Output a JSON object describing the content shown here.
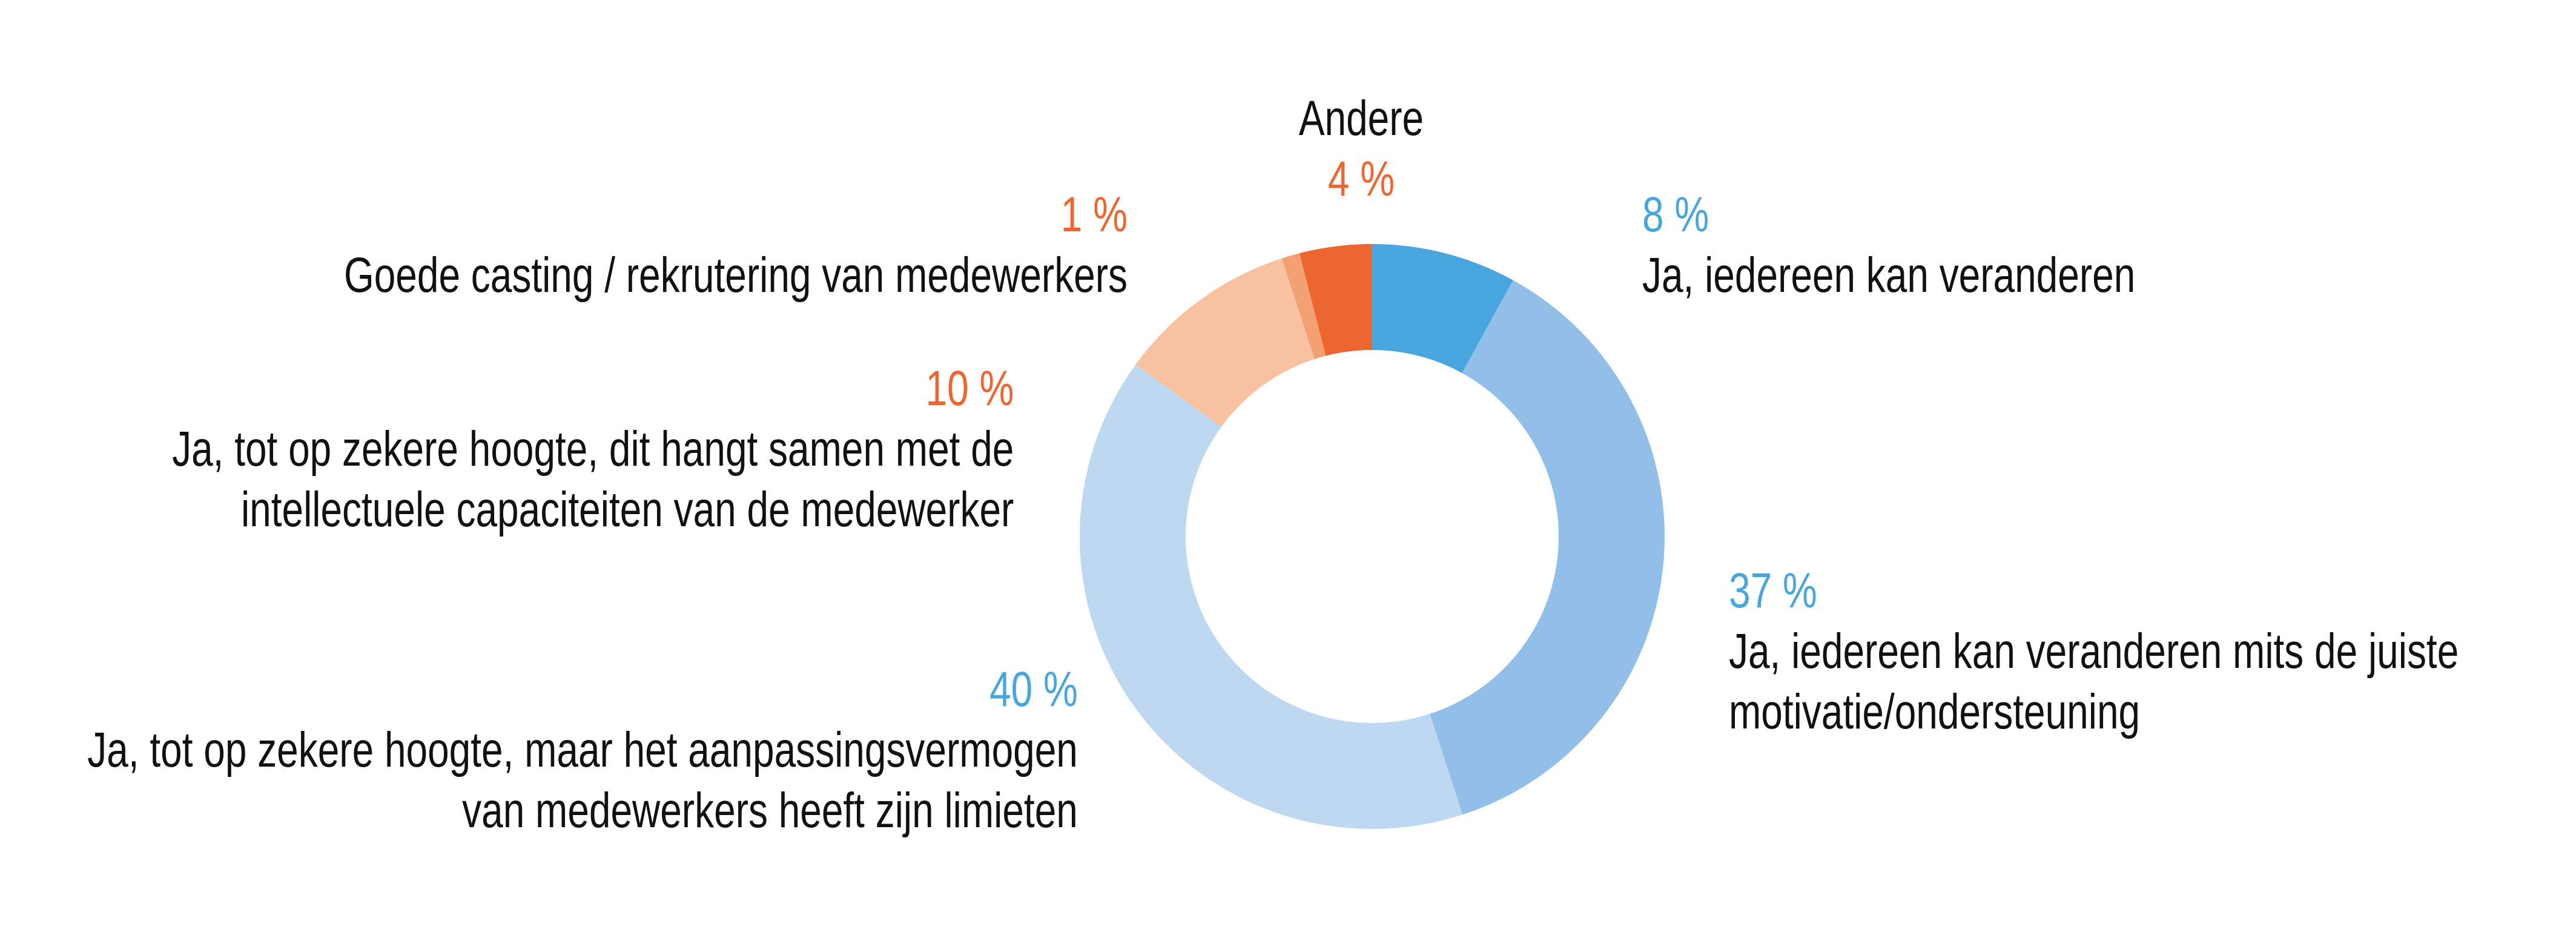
{
  "chart_data": {
    "type": "pie",
    "variant": "donut",
    "title": "",
    "start": "top",
    "direction": "clockwise",
    "slices": [
      {
        "label": "Ja, iedereen kan veranderen",
        "value": 8,
        "value_label": "8 %",
        "color": "#49A5DE",
        "label_color": "#49A5DE"
      },
      {
        "label": "Ja, iedereen kan veranderen mits de juiste motivatie/ondersteuning",
        "value": 37,
        "value_label": "37 %",
        "color": "#92BFE8",
        "label_color": "#49A5DE"
      },
      {
        "label": "Ja, tot op zekere hoogte, maar het aanpassingsvermogen van medewerkers heeft zijn limieten",
        "value": 40,
        "value_label": "40 %",
        "color": "#BFD8F1",
        "label_color": "#49A5DE"
      },
      {
        "label": "Ja, tot op zekere hoogte, dit hangt samen met de intellectuele capaciteiten van de medewerker",
        "value": 10,
        "value_label": "10 %",
        "color": "#F8C2A0",
        "label_color": "#EC6730"
      },
      {
        "label": "Goede casting / rekrutering van medewerkers",
        "value": 1,
        "value_label": "1 %",
        "color": "#F3A173",
        "label_color": "#EC6730"
      },
      {
        "label": "Andere",
        "value": 4,
        "value_label": "4 %",
        "color": "#EC6730",
        "label_color": "#EC6730"
      }
    ]
  },
  "labels": {
    "s0": {
      "pct": "8 %",
      "lines": [
        "Ja, iedereen kan veranderen"
      ]
    },
    "s1": {
      "pct": "37 %",
      "lines": [
        "Ja, iedereen kan veranderen mits de juiste",
        "motivatie/ondersteuning"
      ]
    },
    "s2": {
      "pct": "40 %",
      "lines": [
        "Ja, tot op zekere hoogte, maar het aanpassingsvermogen",
        "van medewerkers heeft zijn limieten"
      ]
    },
    "s3": {
      "pct": "10 %",
      "lines": [
        "Ja, tot op zekere hoogte, dit hangt samen met de",
        "intellectuele capaciteiten van de medewerker"
      ]
    },
    "s4": {
      "pct": "1 %",
      "lines": [
        "Goede casting / rekrutering van medewerkers"
      ]
    },
    "s5": {
      "pct": "4 %",
      "name": "Andere"
    }
  }
}
